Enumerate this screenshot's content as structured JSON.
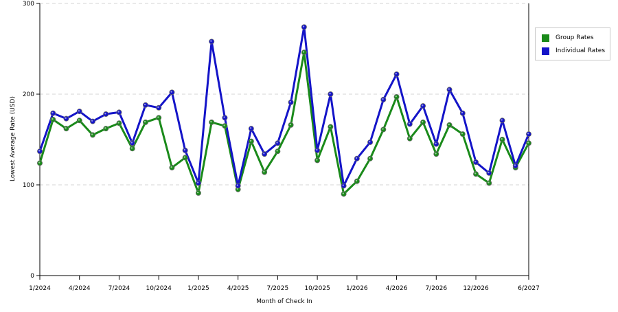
{
  "chart_data": {
    "type": "line",
    "title": "",
    "xlabel": "Month of Check In",
    "ylabel": "Lowest Average Rate (USD)",
    "ylim": [
      0,
      300
    ],
    "y_ticks": [
      "0",
      "100",
      "200",
      "300"
    ],
    "grid": "horizontal dashed",
    "legend_position": "top-right",
    "x_tick_labels": [
      {
        "index": 0,
        "label": "1/2024"
      },
      {
        "index": 3,
        "label": "4/2024"
      },
      {
        "index": 6,
        "label": "7/2024"
      },
      {
        "index": 9,
        "label": "10/2024"
      },
      {
        "index": 12,
        "label": "1/2025"
      },
      {
        "index": 15,
        "label": "4/2025"
      },
      {
        "index": 18,
        "label": "7/2025"
      },
      {
        "index": 21,
        "label": "10/2025"
      },
      {
        "index": 24,
        "label": "1/2026"
      },
      {
        "index": 27,
        "label": "4/2026"
      },
      {
        "index": 30,
        "label": "7/2026"
      },
      {
        "index": 33,
        "label": "12/2026"
      },
      {
        "index": 37,
        "label": "6/2027"
      }
    ],
    "series": [
      {
        "name": "Group Rates",
        "color": "#1a8a1a",
        "values": [
          124,
          172,
          162,
          171,
          155,
          162,
          168,
          140,
          169,
          174,
          119,
          130,
          91,
          169,
          165,
          95,
          148,
          114,
          137,
          166,
          246,
          127,
          164,
          90,
          104,
          129,
          161,
          197,
          151,
          169,
          134,
          166,
          156,
          112,
          102,
          150,
          119,
          146
        ]
      },
      {
        "name": "Individual Rates",
        "color": "#1414c8",
        "values": [
          137,
          179,
          173,
          181,
          170,
          178,
          180,
          146,
          188,
          185,
          202,
          138,
          102,
          258,
          174,
          99,
          162,
          134,
          146,
          191,
          274,
          138,
          200,
          99,
          129,
          147,
          194,
          222,
          167,
          187,
          145,
          205,
          179,
          125,
          113,
          171,
          121,
          156
        ]
      }
    ]
  }
}
